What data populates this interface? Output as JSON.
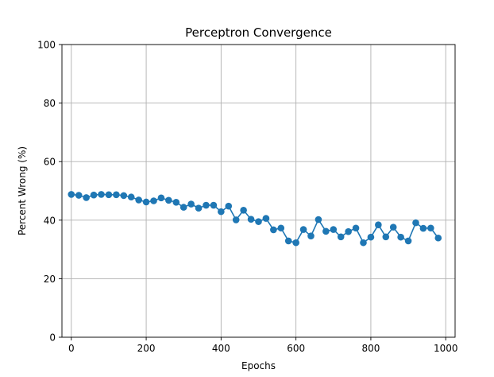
{
  "chart_data": {
    "type": "line",
    "title": "Perceptron Convergence",
    "xlabel": "Epochs",
    "ylabel": "Percent Wrong (%)",
    "xlim": [
      -25,
      1025
    ],
    "ylim": [
      0,
      100
    ],
    "xticks": [
      0,
      200,
      400,
      600,
      800,
      1000
    ],
    "yticks": [
      0,
      20,
      40,
      60,
      80,
      100
    ],
    "grid": true,
    "series_color": "#1f77b4",
    "marker": "circle",
    "x": [
      0,
      20,
      40,
      60,
      80,
      100,
      120,
      140,
      160,
      180,
      200,
      220,
      240,
      260,
      280,
      300,
      320,
      340,
      360,
      380,
      400,
      420,
      440,
      460,
      480,
      500,
      520,
      540,
      560,
      580,
      600,
      620,
      640,
      660,
      680,
      700,
      720,
      740,
      760,
      780,
      800,
      820,
      840,
      860,
      880,
      900,
      920,
      940,
      960,
      980
    ],
    "y": [
      48.8,
      48.5,
      47.7,
      48.6,
      48.8,
      48.7,
      48.7,
      48.4,
      47.9,
      46.9,
      46.2,
      46.6,
      47.6,
      46.8,
      46.1,
      44.4,
      45.5,
      44.1,
      45.1,
      45.1,
      42.9,
      44.8,
      40.1,
      43.4,
      40.3,
      39.5,
      40.6,
      36.7,
      37.3,
      32.9,
      32.3,
      36.8,
      34.6,
      40.2,
      36.2,
      36.8,
      34.3,
      36.1,
      37.3,
      32.3,
      34.2,
      38.4,
      34.3,
      37.6,
      34.2,
      32.9,
      39.1,
      37.2,
      37.3,
      33.9
    ]
  }
}
